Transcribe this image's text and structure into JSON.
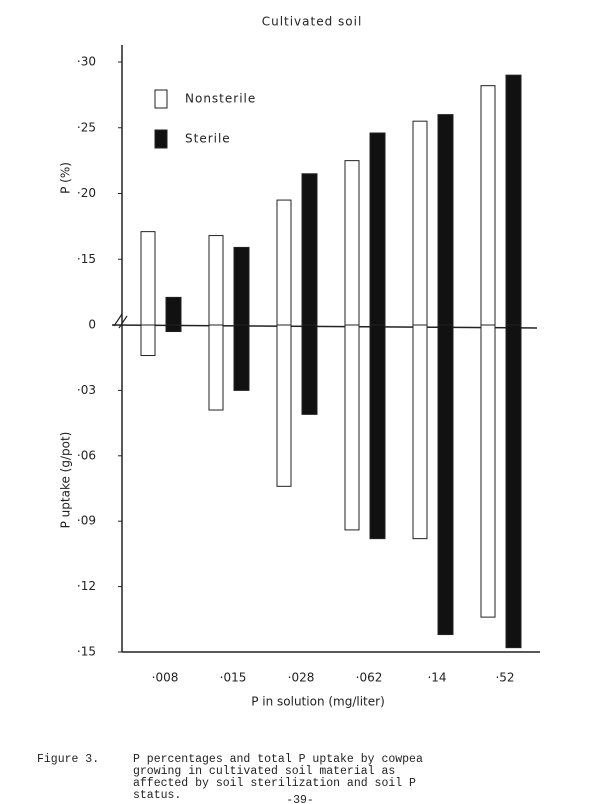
{
  "chart_data": {
    "type": "bar",
    "title": "Cultivated soil",
    "ylabel": "P (%)",
    "y2label": "P uptake (g/pot)",
    "xlabel": "P in solution (mg/liter)",
    "categories": [
      "·008",
      "·015",
      "·028",
      "·062",
      "·14",
      "·52"
    ],
    "series": [
      {
        "name": "Nonsterile",
        "color": "#ffffff",
        "values": [
          0.171,
          0.168,
          0.195,
          0.225,
          0.255,
          0.282
        ],
        "uptake": [
          0.014,
          0.039,
          0.074,
          0.094,
          0.098,
          0.134
        ]
      },
      {
        "name": "Sterile",
        "color": "#111111",
        "values": [
          0.121,
          0.159,
          0.215,
          0.246,
          0.26,
          0.29
        ],
        "uptake": [
          0.003,
          0.03,
          0.041,
          0.098,
          0.142,
          0.148
        ]
      }
    ],
    "ylim": [
      0.1,
      0.3
    ],
    "yticks": [
      {
        "value": 0.15,
        "label": "·15"
      },
      {
        "value": 0.2,
        "label": "·20"
      },
      {
        "value": 0.25,
        "label": "·25"
      },
      {
        "value": 0.3,
        "label": "·30"
      }
    ],
    "y2lim": [
      0,
      0.15
    ],
    "y2ticks": [
      0,
      {
        "value": 0.03,
        "label": "·03"
      },
      {
        "value": 0.06,
        "label": "·06"
      },
      {
        "value": 0.09,
        "label": "·09"
      },
      {
        "value": 0.12,
        "label": "·12"
      },
      {
        "value": 0.15,
        "label": "·15"
      }
    ],
    "legend": "top-left"
  },
  "caption": {
    "figure": "Figure 3.",
    "lines": [
      "P percentages and total P uptake by cowpea",
      "growing in cultivated soil material as",
      "affected by soil sterilization and soil P",
      "status."
    ],
    "page_number": "-39-"
  }
}
